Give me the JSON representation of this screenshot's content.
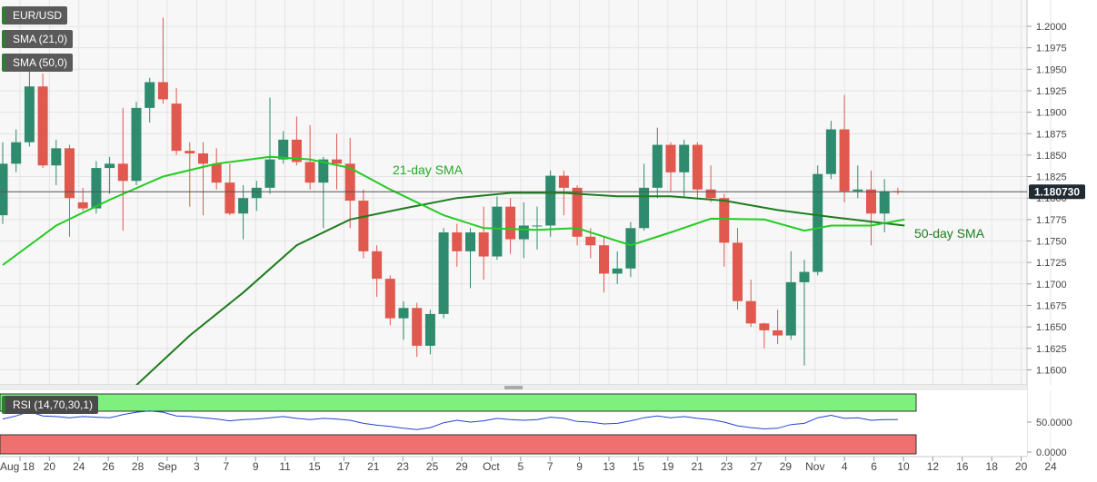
{
  "legend": {
    "symbol": "EUR/USD",
    "sma21": "SMA (21,0)",
    "sma50": "SMA (50,0)",
    "sma21_color": "#22cc22",
    "sma50_color": "#1e7d1e"
  },
  "annotations": {
    "sma21_label": "21-day SMA",
    "sma50_label": "50-day SMA"
  },
  "price_tag": "1.180730",
  "rsi": {
    "label": "RSI (14,70,30,1)",
    "ticks": [
      "50.0000",
      "0.0000"
    ],
    "overbought": 70,
    "oversold": 30
  },
  "colors": {
    "up": "#2e8b6e",
    "down": "#e0584e",
    "rsi_line": "#2244cc",
    "rsi_upper": "#7ef07e",
    "rsi_lower": "#f07070"
  },
  "chart_data": {
    "type": "candlestick",
    "y_ticks": [
      "1.2000",
      "1.1975",
      "1.1950",
      "1.1925",
      "1.1900",
      "1.1875",
      "1.1850",
      "1.1825",
      "1.1800",
      "1.1775",
      "1.1750",
      "1.1725",
      "1.1700",
      "1.1675",
      "1.1650",
      "1.1625",
      "1.1600"
    ],
    "ylim": [
      1.158,
      1.202
    ],
    "x_ticks": [
      "Aug 18",
      "20",
      "24",
      "26",
      "28",
      "Sep",
      "3",
      "7",
      "9",
      "11",
      "15",
      "17",
      "21",
      "23",
      "25",
      "29",
      "Oct",
      "5",
      "7",
      "9",
      "13",
      "15",
      "19",
      "21",
      "23",
      "27",
      "29",
      "Nov",
      "4",
      "6",
      "10",
      "12",
      "16",
      "18",
      "20",
      "24"
    ],
    "last_price": 1.18073,
    "candles": [
      {
        "o": 1.178,
        "h": 1.1865,
        "l": 1.177,
        "c": 1.184
      },
      {
        "o": 1.184,
        "h": 1.188,
        "l": 1.183,
        "c": 1.1865
      },
      {
        "o": 1.1865,
        "h": 1.1962,
        "l": 1.186,
        "c": 1.193
      },
      {
        "o": 1.193,
        "h": 1.1945,
        "l": 1.1835,
        "c": 1.1838
      },
      {
        "o": 1.1838,
        "h": 1.1868,
        "l": 1.1815,
        "c": 1.1858
      },
      {
        "o": 1.1858,
        "h": 1.1862,
        "l": 1.1755,
        "c": 1.18
      },
      {
        "o": 1.1795,
        "h": 1.1812,
        "l": 1.1785,
        "c": 1.1788
      },
      {
        "o": 1.1788,
        "h": 1.1843,
        "l": 1.1782,
        "c": 1.1835
      },
      {
        "o": 1.1835,
        "h": 1.1848,
        "l": 1.1805,
        "c": 1.184
      },
      {
        "o": 1.184,
        "h": 1.1905,
        "l": 1.1762,
        "c": 1.182
      },
      {
        "o": 1.182,
        "h": 1.1912,
        "l": 1.1815,
        "c": 1.1905
      },
      {
        "o": 1.1905,
        "h": 1.194,
        "l": 1.1888,
        "c": 1.1935
      },
      {
        "o": 1.1935,
        "h": 1.201,
        "l": 1.191,
        "c": 1.1915
      },
      {
        "o": 1.191,
        "h": 1.1928,
        "l": 1.185,
        "c": 1.1855
      },
      {
        "o": 1.1855,
        "h": 1.1865,
        "l": 1.179,
        "c": 1.1852
      },
      {
        "o": 1.1852,
        "h": 1.1865,
        "l": 1.178,
        "c": 1.184
      },
      {
        "o": 1.184,
        "h": 1.1858,
        "l": 1.181,
        "c": 1.1818
      },
      {
        "o": 1.1818,
        "h": 1.184,
        "l": 1.178,
        "c": 1.1782
      },
      {
        "o": 1.1782,
        "h": 1.1815,
        "l": 1.1752,
        "c": 1.18
      },
      {
        "o": 1.18,
        "h": 1.182,
        "l": 1.1785,
        "c": 1.1812
      },
      {
        "o": 1.1812,
        "h": 1.1917,
        "l": 1.1805,
        "c": 1.1845
      },
      {
        "o": 1.1845,
        "h": 1.1878,
        "l": 1.184,
        "c": 1.1868
      },
      {
        "o": 1.1868,
        "h": 1.1895,
        "l": 1.1838,
        "c": 1.1842
      },
      {
        "o": 1.1842,
        "h": 1.1885,
        "l": 1.181,
        "c": 1.1818
      },
      {
        "o": 1.1818,
        "h": 1.1848,
        "l": 1.1765,
        "c": 1.1845
      },
      {
        "o": 1.1845,
        "h": 1.1875,
        "l": 1.181,
        "c": 1.184
      },
      {
        "o": 1.184,
        "h": 1.187,
        "l": 1.1765,
        "c": 1.1797
      },
      {
        "o": 1.1797,
        "h": 1.181,
        "l": 1.173,
        "c": 1.1738
      },
      {
        "o": 1.1738,
        "h": 1.1745,
        "l": 1.1685,
        "c": 1.1706
      },
      {
        "o": 1.1706,
        "h": 1.171,
        "l": 1.1652,
        "c": 1.166
      },
      {
        "o": 1.166,
        "h": 1.168,
        "l": 1.1635,
        "c": 1.1672
      },
      {
        "o": 1.1672,
        "h": 1.1678,
        "l": 1.1615,
        "c": 1.1628
      },
      {
        "o": 1.1628,
        "h": 1.167,
        "l": 1.1618,
        "c": 1.1665
      },
      {
        "o": 1.1665,
        "h": 1.1765,
        "l": 1.166,
        "c": 1.176
      },
      {
        "o": 1.176,
        "h": 1.177,
        "l": 1.172,
        "c": 1.1738
      },
      {
        "o": 1.1738,
        "h": 1.1765,
        "l": 1.1695,
        "c": 1.176
      },
      {
        "o": 1.176,
        "h": 1.179,
        "l": 1.1705,
        "c": 1.1732
      },
      {
        "o": 1.1732,
        "h": 1.1802,
        "l": 1.1728,
        "c": 1.179
      },
      {
        "o": 1.179,
        "h": 1.18,
        "l": 1.1735,
        "c": 1.1752
      },
      {
        "o": 1.1752,
        "h": 1.1795,
        "l": 1.173,
        "c": 1.1768
      },
      {
        "o": 1.1768,
        "h": 1.179,
        "l": 1.174,
        "c": 1.1768
      },
      {
        "o": 1.1768,
        "h": 1.1832,
        "l": 1.1755,
        "c": 1.1826
      },
      {
        "o": 1.1826,
        "h": 1.1832,
        "l": 1.178,
        "c": 1.1812
      },
      {
        "o": 1.1812,
        "h": 1.1815,
        "l": 1.1745,
        "c": 1.1755
      },
      {
        "o": 1.1755,
        "h": 1.1765,
        "l": 1.173,
        "c": 1.1745
      },
      {
        "o": 1.1745,
        "h": 1.1755,
        "l": 1.169,
        "c": 1.1712
      },
      {
        "o": 1.1712,
        "h": 1.1738,
        "l": 1.17,
        "c": 1.1718
      },
      {
        "o": 1.1718,
        "h": 1.1772,
        "l": 1.1708,
        "c": 1.1765
      },
      {
        "o": 1.1765,
        "h": 1.184,
        "l": 1.1762,
        "c": 1.1812
      },
      {
        "o": 1.1812,
        "h": 1.1882,
        "l": 1.18,
        "c": 1.1862
      },
      {
        "o": 1.1862,
        "h": 1.1865,
        "l": 1.1808,
        "c": 1.183
      },
      {
        "o": 1.183,
        "h": 1.1868,
        "l": 1.18,
        "c": 1.1862
      },
      {
        "o": 1.1862,
        "h": 1.1865,
        "l": 1.18,
        "c": 1.181
      },
      {
        "o": 1.181,
        "h": 1.1838,
        "l": 1.1795,
        "c": 1.18
      },
      {
        "o": 1.18,
        "h": 1.1805,
        "l": 1.172,
        "c": 1.1748
      },
      {
        "o": 1.1748,
        "h": 1.1765,
        "l": 1.167,
        "c": 1.168
      },
      {
        "o": 1.168,
        "h": 1.1705,
        "l": 1.165,
        "c": 1.1654
      },
      {
        "o": 1.1654,
        "h": 1.1655,
        "l": 1.1625,
        "c": 1.1646
      },
      {
        "o": 1.1646,
        "h": 1.167,
        "l": 1.163,
        "c": 1.164
      },
      {
        "o": 1.164,
        "h": 1.1738,
        "l": 1.1635,
        "c": 1.1702
      },
      {
        "o": 1.1702,
        "h": 1.1728,
        "l": 1.1605,
        "c": 1.1714
      },
      {
        "o": 1.1714,
        "h": 1.1838,
        "l": 1.171,
        "c": 1.1828
      },
      {
        "o": 1.1828,
        "h": 1.189,
        "l": 1.1822,
        "c": 1.188
      },
      {
        "o": 1.188,
        "h": 1.192,
        "l": 1.1795,
        "c": 1.1808
      },
      {
        "o": 1.1808,
        "h": 1.1838,
        "l": 1.18,
        "c": 1.181
      },
      {
        "o": 1.181,
        "h": 1.1832,
        "l": 1.1745,
        "c": 1.1782
      },
      {
        "o": 1.1782,
        "h": 1.1822,
        "l": 1.176,
        "c": 1.1808
      },
      {
        "o": 1.1808,
        "h": 1.1812,
        "l": 1.1804,
        "c": 1.1807
      }
    ],
    "sma21": [
      {
        "x": 0,
        "y": 1.1722
      },
      {
        "x": 4,
        "y": 1.1768
      },
      {
        "x": 8,
        "y": 1.1798
      },
      {
        "x": 12,
        "y": 1.1825
      },
      {
        "x": 16,
        "y": 1.184
      },
      {
        "x": 20,
        "y": 1.1848
      },
      {
        "x": 23,
        "y": 1.1845
      },
      {
        "x": 26,
        "y": 1.1835
      },
      {
        "x": 29,
        "y": 1.181
      },
      {
        "x": 33,
        "y": 1.178
      },
      {
        "x": 36,
        "y": 1.1765
      },
      {
        "x": 40,
        "y": 1.1763
      },
      {
        "x": 43,
        "y": 1.1765
      },
      {
        "x": 47,
        "y": 1.1745
      },
      {
        "x": 50,
        "y": 1.176
      },
      {
        "x": 53,
        "y": 1.1776
      },
      {
        "x": 57,
        "y": 1.1775
      },
      {
        "x": 60,
        "y": 1.1762
      },
      {
        "x": 62,
        "y": 1.1768
      },
      {
        "x": 65,
        "y": 1.1768
      },
      {
        "x": 67.5,
        "y": 1.1775
      }
    ],
    "sma50": [
      {
        "x": 10,
        "y": 1.1582
      },
      {
        "x": 14,
        "y": 1.164
      },
      {
        "x": 18,
        "y": 1.169
      },
      {
        "x": 22,
        "y": 1.1745
      },
      {
        "x": 26,
        "y": 1.1775
      },
      {
        "x": 30,
        "y": 1.1788
      },
      {
        "x": 34,
        "y": 1.18
      },
      {
        "x": 38,
        "y": 1.1806
      },
      {
        "x": 42,
        "y": 1.1806
      },
      {
        "x": 46,
        "y": 1.1802
      },
      {
        "x": 50,
        "y": 1.1802
      },
      {
        "x": 54,
        "y": 1.1797
      },
      {
        "x": 58,
        "y": 1.1786
      },
      {
        "x": 62,
        "y": 1.1778
      },
      {
        "x": 67.5,
        "y": 1.1768
      }
    ],
    "rsi_values": [
      55,
      60,
      67,
      60,
      59,
      57,
      59,
      58,
      57,
      62,
      66,
      68,
      66,
      60,
      59,
      57,
      55,
      52,
      54,
      55,
      57,
      59,
      56,
      54,
      56,
      55,
      53,
      48,
      45,
      43,
      40,
      38,
      41,
      49,
      53,
      50,
      52,
      56,
      54,
      53,
      54,
      58,
      56,
      51,
      50,
      47,
      48,
      52,
      57,
      60,
      57,
      59,
      56,
      54,
      50,
      44,
      41,
      39,
      40,
      46,
      48,
      57,
      61,
      56,
      57,
      53,
      54,
      54
    ]
  }
}
